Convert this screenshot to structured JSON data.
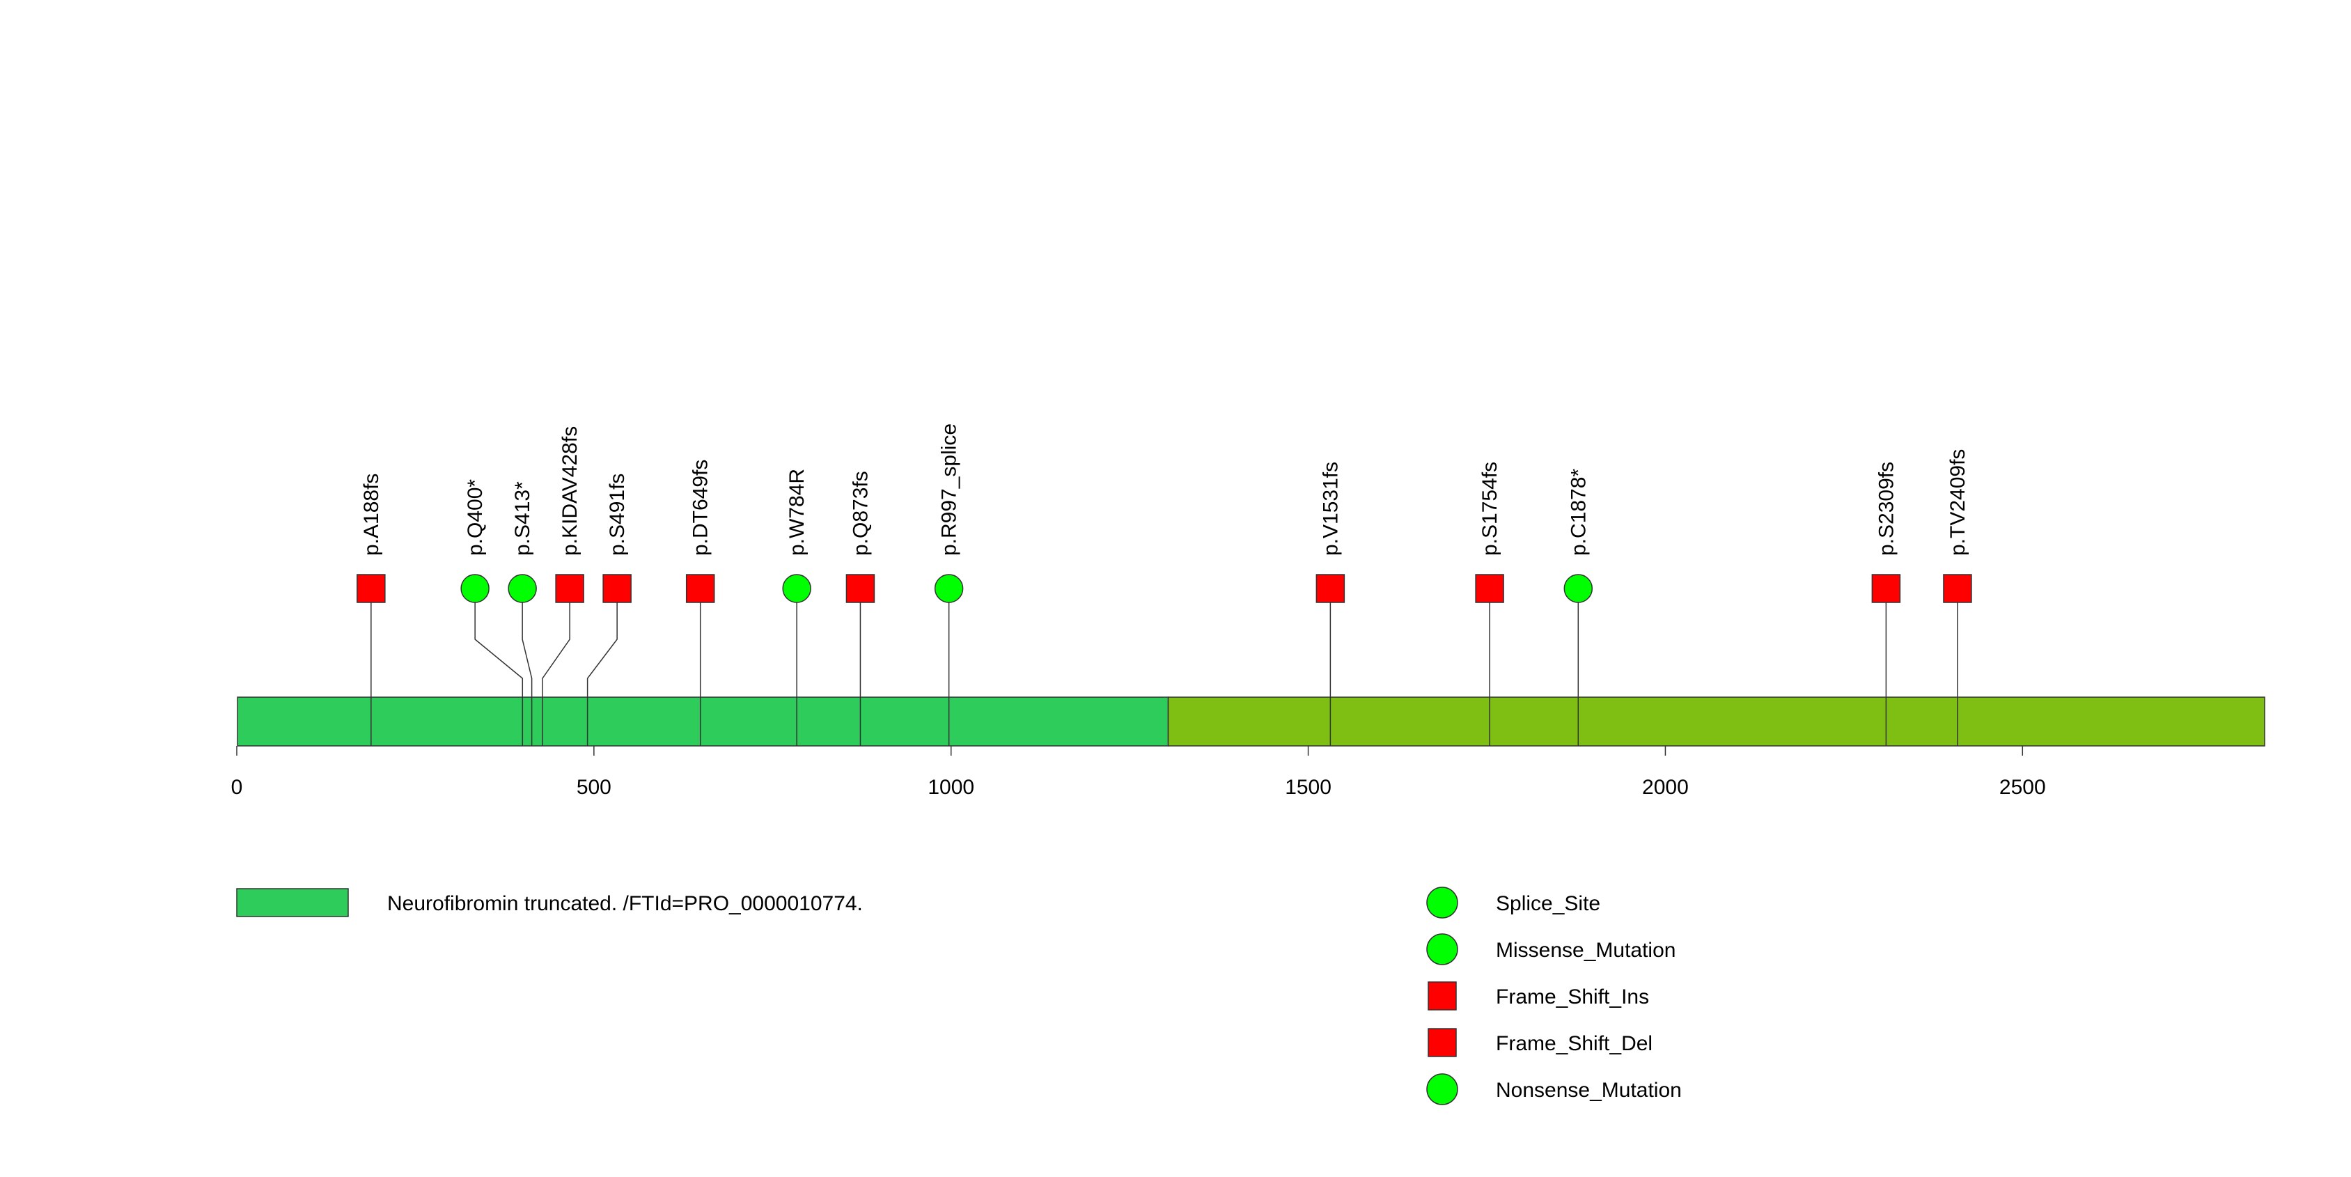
{
  "chart_data": {
    "type": "lollipop",
    "protein_length": 2839,
    "xaxis": {
      "range": [
        0,
        2839
      ],
      "ticks": [
        0,
        500,
        1000,
        1500,
        2000,
        2500
      ],
      "tick_labels": [
        "0",
        "500",
        "1000",
        "1500",
        "2000",
        "2500"
      ]
    },
    "domains": [
      {
        "name": "Neurofibromin truncated. /FTId=PRO_0000010774.",
        "start": 1,
        "end": 1304,
        "color": "#2ecc5a"
      },
      {
        "name": "",
        "start": 1304,
        "end": 2839,
        "color": "#7fbf14"
      }
    ],
    "mutations": [
      {
        "label": "p.A188fs",
        "position": 188,
        "type": "Frame_Shift_Ins",
        "shape": "square",
        "color": "#ff0000"
      },
      {
        "label": "p.Q400*",
        "position": 400,
        "type": "Nonsense_Mutation",
        "shape": "circle",
        "color": "#00ff00"
      },
      {
        "label": "p.S413*",
        "position": 413,
        "type": "Nonsense_Mutation",
        "shape": "circle",
        "color": "#00ff00"
      },
      {
        "label": "p.KIDAV428fs",
        "position": 428,
        "type": "Frame_Shift_Del",
        "shape": "square",
        "color": "#ff0000"
      },
      {
        "label": "p.S491fs",
        "position": 491,
        "type": "Frame_Shift_Del",
        "shape": "square",
        "color": "#ff0000"
      },
      {
        "label": "p.DT649fs",
        "position": 649,
        "type": "Frame_Shift_Del",
        "shape": "square",
        "color": "#ff0000"
      },
      {
        "label": "p.W784R",
        "position": 784,
        "type": "Missense_Mutation",
        "shape": "circle",
        "color": "#00ff00"
      },
      {
        "label": "p.Q873fs",
        "position": 873,
        "type": "Frame_Shift_Del",
        "shape": "square",
        "color": "#ff0000"
      },
      {
        "label": "p.R997_splice",
        "position": 997,
        "type": "Splice_Site",
        "shape": "circle",
        "color": "#00ff00"
      },
      {
        "label": "p.V1531fs",
        "position": 1531,
        "type": "Frame_Shift_Del",
        "shape": "square",
        "color": "#ff0000"
      },
      {
        "label": "p.S1754fs",
        "position": 1754,
        "type": "Frame_Shift_Del",
        "shape": "square",
        "color": "#ff0000"
      },
      {
        "label": "p.C1878*",
        "position": 1878,
        "type": "Nonsense_Mutation",
        "shape": "circle",
        "color": "#00ff00"
      },
      {
        "label": "p.S2309fs",
        "position": 2309,
        "type": "Frame_Shift_Del",
        "shape": "square",
        "color": "#ff0000"
      },
      {
        "label": "p.TV2409fs",
        "position": 2409,
        "type": "Frame_Shift_Del",
        "shape": "square",
        "color": "#ff0000"
      }
    ],
    "legend": {
      "domain_entries": [
        {
          "label": "Neurofibromin truncated. /FTId=PRO_0000010774.",
          "color": "#2ecc5a"
        }
      ],
      "mutation_entries": [
        {
          "label": "Splice_Site",
          "shape": "circle",
          "color": "#00ff00"
        },
        {
          "label": "Missense_Mutation",
          "shape": "circle",
          "color": "#00ff00"
        },
        {
          "label": "Frame_Shift_Ins",
          "shape": "square",
          "color": "#ff0000"
        },
        {
          "label": "Frame_Shift_Del",
          "shape": "square",
          "color": "#ff0000"
        },
        {
          "label": "Nonsense_Mutation",
          "shape": "circle",
          "color": "#00ff00"
        }
      ]
    }
  }
}
